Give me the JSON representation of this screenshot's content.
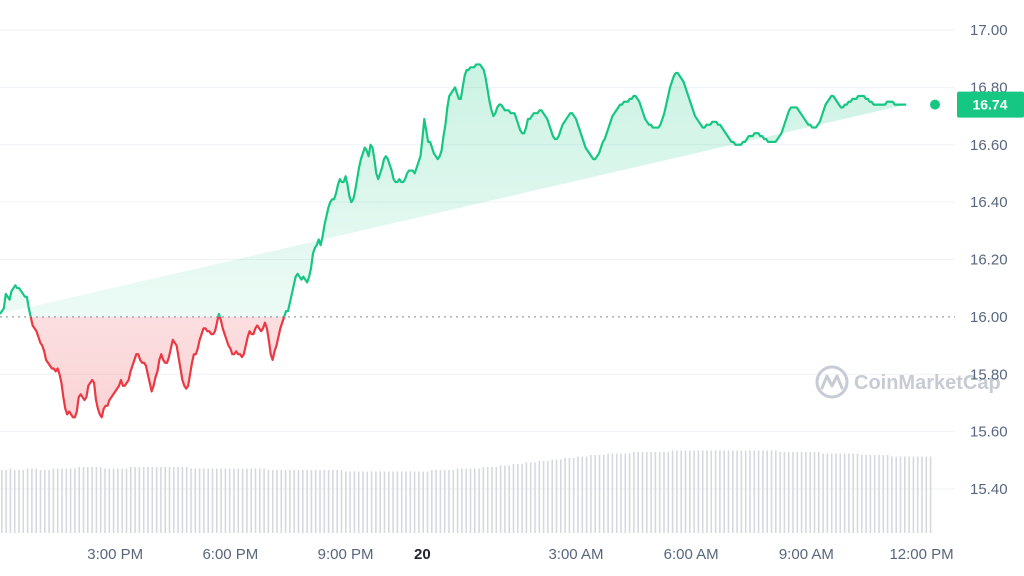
{
  "watermark": {
    "brand": "CoinMarketCap",
    "logo_icon": "coinmarketcap-logo-icon"
  },
  "price_badge": {
    "value": "16.74"
  },
  "colors": {
    "up": "#16c784",
    "down": "#ea3943",
    "baseline": "#9aa0aa",
    "grid": "#eff2f5",
    "volume": "#d5d9df",
    "badge_bg": "#16c784"
  },
  "chart_data": {
    "type": "area",
    "baseline": 16.0,
    "ylim": [
      15.3,
      17.05
    ],
    "yticks": [
      "17.00",
      "16.80",
      "16.60",
      "16.40",
      "16.20",
      "16.00",
      "15.80",
      "15.60",
      "15.40"
    ],
    "ytick_values": [
      17.0,
      16.8,
      16.6,
      16.4,
      16.2,
      16.0,
      15.8,
      15.6,
      15.4
    ],
    "xticks": [
      {
        "label": "3:00 PM",
        "hour": 3.0
      },
      {
        "label": "6:00 PM",
        "hour": 6.0
      },
      {
        "label": "9:00 PM",
        "hour": 9.0
      },
      {
        "label": "20",
        "hour": 11.0,
        "bold": true
      },
      {
        "label": "3:00 AM",
        "hour": 15.0
      },
      {
        "label": "6:00 AM",
        "hour": 18.0
      },
      {
        "label": "9:00 AM",
        "hour": 21.0
      },
      {
        "label": "12:00 PM",
        "hour": 24.0
      }
    ],
    "xlim_hours": [
      0.0,
      24.75
    ],
    "price_series": {
      "hours": [
        0.0,
        0.1,
        0.15,
        0.2,
        0.25,
        0.3,
        0.35,
        0.4,
        0.45,
        0.5,
        0.55,
        0.6,
        0.65,
        0.7,
        0.75,
        0.8,
        0.85,
        0.9,
        0.95,
        1.0,
        1.05,
        1.1,
        1.15,
        1.2,
        1.25,
        1.3,
        1.35,
        1.4,
        1.45,
        1.5,
        1.55,
        1.6,
        1.65,
        1.7,
        1.75,
        1.8,
        1.85,
        1.9,
        1.95,
        2.0,
        2.05,
        2.1,
        2.15,
        2.2,
        2.25,
        2.3,
        2.35,
        2.4,
        2.45,
        2.5,
        2.55,
        2.6,
        2.65,
        2.7,
        2.75,
        2.8,
        2.85,
        2.9,
        2.95,
        3.0,
        3.05,
        3.1,
        3.15,
        3.2,
        3.25,
        3.3,
        3.35,
        3.4,
        3.45,
        3.5,
        3.55,
        3.6,
        3.65,
        3.7,
        3.75,
        3.8,
        3.85,
        3.9,
        3.95,
        4.0,
        4.05,
        4.1,
        4.15,
        4.2,
        4.25,
        4.3,
        4.35,
        4.4,
        4.45,
        4.5,
        4.55,
        4.6,
        4.65,
        4.7,
        4.75,
        4.8,
        4.85,
        4.9,
        4.95,
        5.0,
        5.05,
        5.1,
        5.15,
        5.2,
        5.25,
        5.3,
        5.35,
        5.4,
        5.45,
        5.5,
        5.55,
        5.6,
        5.65,
        5.7,
        5.75,
        5.8,
        5.85,
        5.9,
        5.95,
        6.0,
        6.05,
        6.1,
        6.15,
        6.2,
        6.25,
        6.3,
        6.35,
        6.4,
        6.45,
        6.5,
        6.55,
        6.6,
        6.65,
        6.7,
        6.75,
        6.8,
        6.85,
        6.9,
        6.95,
        7.0,
        7.05,
        7.1,
        7.15,
        7.2,
        7.25,
        7.3,
        7.35,
        7.4,
        7.45,
        7.5,
        7.55,
        7.6,
        7.65,
        7.7,
        7.75,
        7.8,
        7.85,
        7.9,
        7.95,
        8.0,
        8.05,
        8.1,
        8.15,
        8.2,
        8.25,
        8.3,
        8.35,
        8.4,
        8.45,
        8.5,
        8.55,
        8.6,
        8.65,
        8.7,
        8.75,
        8.8,
        8.85,
        8.9,
        8.95,
        9.0,
        9.05,
        9.1,
        9.15,
        9.2,
        9.25,
        9.3,
        9.35,
        9.4,
        9.45,
        9.5,
        9.55,
        9.6,
        9.65,
        9.7,
        9.75,
        9.8,
        9.85,
        9.9,
        9.95,
        10.0,
        10.05,
        10.1,
        10.15,
        10.2,
        10.25,
        10.3,
        10.35,
        10.4,
        10.45,
        10.5,
        10.55,
        10.6,
        10.65,
        10.7,
        10.75,
        10.8,
        10.85,
        10.9,
        10.95,
        11.0,
        11.05,
        11.1,
        11.15,
        11.2,
        11.25,
        11.3,
        11.35,
        11.4,
        11.45,
        11.5,
        11.55,
        11.6,
        11.65,
        11.7,
        11.75,
        11.8,
        11.85,
        11.9,
        11.95,
        12.0,
        12.05,
        12.1,
        12.15,
        12.2,
        12.25,
        12.3,
        12.35,
        12.4,
        12.45,
        12.5,
        12.55,
        12.6,
        12.65,
        12.7,
        12.75,
        12.8,
        12.85,
        12.9,
        12.95,
        13.0,
        13.05,
        13.1,
        13.15,
        13.2,
        13.25,
        13.3,
        13.35,
        13.4,
        13.45,
        13.5,
        13.55,
        13.6,
        13.65,
        13.7,
        13.75,
        13.8,
        13.85,
        13.9,
        13.95,
        14.0,
        14.05,
        14.1,
        14.15,
        14.2,
        14.25,
        14.3,
        14.35,
        14.4,
        14.45,
        14.5,
        14.55,
        14.6,
        14.65,
        14.7,
        14.75,
        14.8,
        14.85,
        14.9,
        14.95,
        15.0,
        15.05,
        15.1,
        15.15,
        15.2,
        15.25,
        15.3,
        15.35,
        15.4,
        15.45,
        15.5,
        15.55,
        15.6,
        15.65,
        15.7,
        15.75,
        15.8,
        15.85,
        15.9,
        15.95,
        16.0,
        16.05,
        16.1,
        16.15,
        16.2,
        16.25,
        16.3,
        16.35,
        16.4,
        16.45,
        16.5,
        16.55,
        16.6,
        16.65,
        16.7,
        16.75,
        16.8,
        16.85,
        16.9,
        16.95,
        17.0,
        17.05,
        17.1,
        17.15,
        17.2,
        17.25,
        17.3,
        17.35,
        17.4,
        17.45,
        17.5,
        17.55,
        17.6,
        17.65,
        17.7,
        17.75,
        17.8,
        17.85,
        17.9,
        17.95,
        18.0,
        18.05,
        18.1,
        18.15,
        18.2,
        18.25,
        18.3,
        18.35,
        18.4,
        18.45,
        18.5,
        18.55,
        18.6,
        18.65,
        18.7,
        18.75,
        18.8,
        18.85,
        18.9,
        18.95,
        19.0,
        19.05,
        19.1,
        19.15,
        19.2,
        19.25,
        19.3,
        19.35,
        19.4,
        19.45,
        19.5,
        19.55,
        19.6,
        19.65,
        19.7,
        19.75,
        19.8,
        19.85,
        19.9,
        19.95,
        20.0,
        20.05,
        20.1,
        20.15,
        20.2,
        20.25,
        20.3,
        20.35,
        20.4,
        20.45,
        20.5,
        20.55,
        20.6,
        20.65,
        20.7,
        20.75,
        20.8,
        20.85,
        20.9,
        20.95,
        21.0,
        21.05,
        21.1,
        21.15,
        21.2,
        21.25,
        21.3,
        21.35,
        21.4,
        21.45,
        21.5,
        21.55,
        21.6,
        21.65,
        21.7,
        21.75,
        21.8,
        21.85,
        21.9,
        21.95,
        22.0,
        22.05,
        22.1,
        22.15,
        22.2,
        22.25,
        22.3,
        22.35,
        22.4,
        22.45,
        22.5,
        22.55,
        22.6,
        22.65,
        22.7,
        22.75,
        22.8,
        22.85,
        22.9,
        22.95,
        23.0,
        23.05,
        23.1,
        23.15,
        23.2,
        23.25,
        23.3,
        23.35,
        23.4,
        23.45,
        23.5,
        23.55,
        23.6,
        23.65,
        23.7,
        23.75,
        23.8,
        23.85,
        23.9,
        23.95,
        24.0,
        24.05,
        24.1,
        24.15,
        24.2,
        24.25,
        24.3,
        24.35
      ],
      "prices": [
        16.01,
        16.03,
        16.08,
        16.07,
        16.06,
        16.09,
        16.1,
        16.11,
        16.1,
        16.1,
        16.09,
        16.08,
        16.07,
        16.07,
        16.03,
        16.0,
        15.97,
        15.96,
        15.95,
        15.93,
        15.91,
        15.9,
        15.88,
        15.85,
        15.84,
        15.83,
        15.82,
        15.82,
        15.81,
        15.82,
        15.8,
        15.77,
        15.72,
        15.68,
        15.66,
        15.67,
        15.66,
        15.65,
        15.65,
        15.67,
        15.72,
        15.73,
        15.72,
        15.71,
        15.72,
        15.76,
        15.77,
        15.78,
        15.77,
        15.71,
        15.68,
        15.66,
        15.65,
        15.68,
        15.69,
        15.69,
        15.71,
        15.72,
        15.73,
        15.74,
        15.75,
        15.76,
        15.78,
        15.76,
        15.76,
        15.77,
        15.78,
        15.81,
        15.83,
        15.85,
        15.87,
        15.87,
        15.85,
        15.84,
        15.84,
        15.83,
        15.8,
        15.77,
        15.74,
        15.76,
        15.79,
        15.81,
        15.85,
        15.87,
        15.85,
        15.84,
        15.84,
        15.86,
        15.89,
        15.92,
        15.91,
        15.9,
        15.86,
        15.82,
        15.78,
        15.76,
        15.75,
        15.76,
        15.8,
        15.84,
        15.87,
        15.87,
        15.89,
        15.92,
        15.94,
        15.96,
        15.96,
        15.95,
        15.95,
        15.94,
        15.94,
        15.95,
        15.98,
        16.01,
        15.99,
        15.96,
        15.94,
        15.92,
        15.9,
        15.89,
        15.87,
        15.87,
        15.88,
        15.87,
        15.87,
        15.86,
        15.87,
        15.9,
        15.93,
        15.95,
        15.94,
        15.94,
        15.96,
        15.97,
        15.96,
        15.95,
        15.96,
        15.98,
        15.96,
        15.92,
        15.87,
        15.85,
        15.88,
        15.9,
        15.93,
        15.96,
        15.98,
        16.0,
        16.02,
        16.02,
        16.05,
        16.08,
        16.11,
        16.14,
        16.15,
        16.14,
        16.13,
        16.14,
        16.13,
        16.12,
        16.14,
        16.17,
        16.22,
        16.24,
        16.25,
        16.27,
        16.25,
        16.28,
        16.32,
        16.35,
        16.38,
        16.4,
        16.41,
        16.41,
        16.43,
        16.46,
        16.48,
        16.47,
        16.47,
        16.49,
        16.46,
        16.42,
        16.4,
        16.41,
        16.44,
        16.48,
        16.52,
        16.55,
        16.57,
        16.59,
        16.58,
        16.56,
        16.6,
        16.59,
        16.55,
        16.5,
        16.48,
        16.5,
        16.52,
        16.55,
        16.56,
        16.55,
        16.53,
        16.51,
        16.48,
        16.47,
        16.47,
        16.48,
        16.47,
        16.47,
        16.48,
        16.5,
        16.51,
        16.51,
        16.51,
        16.5,
        16.52,
        16.54,
        16.56,
        16.62,
        16.69,
        16.65,
        16.61,
        16.61,
        16.59,
        16.57,
        16.56,
        16.55,
        16.56,
        16.58,
        16.63,
        16.67,
        16.73,
        16.77,
        16.78,
        16.79,
        16.8,
        16.78,
        16.76,
        16.76,
        16.8,
        16.84,
        16.86,
        16.86,
        16.87,
        16.87,
        16.87,
        16.88,
        16.88,
        16.88,
        16.87,
        16.86,
        16.83,
        16.79,
        16.75,
        16.72,
        16.7,
        16.71,
        16.73,
        16.74,
        16.74,
        16.73,
        16.72,
        16.72,
        16.72,
        16.71,
        16.71,
        16.71,
        16.69,
        16.67,
        16.65,
        16.64,
        16.64,
        16.66,
        16.69,
        16.69,
        16.7,
        16.71,
        16.71,
        16.71,
        16.72,
        16.72,
        16.71,
        16.7,
        16.69,
        16.67,
        16.65,
        16.63,
        16.62,
        16.62,
        16.63,
        16.65,
        16.67,
        16.68,
        16.69,
        16.7,
        16.71,
        16.71,
        16.7,
        16.69,
        16.67,
        16.65,
        16.63,
        16.61,
        16.59,
        16.58,
        16.57,
        16.56,
        16.55,
        16.55,
        16.56,
        16.57,
        16.59,
        16.61,
        16.62,
        16.64,
        16.66,
        16.68,
        16.7,
        16.71,
        16.72,
        16.73,
        16.74,
        16.74,
        16.75,
        16.75,
        16.75,
        16.76,
        16.76,
        16.77,
        16.77,
        16.76,
        16.75,
        16.73,
        16.71,
        16.69,
        16.68,
        16.67,
        16.67,
        16.66,
        16.66,
        16.66,
        16.66,
        16.67,
        16.69,
        16.71,
        16.74,
        16.77,
        16.8,
        16.82,
        16.84,
        16.85,
        16.85,
        16.84,
        16.83,
        16.82,
        16.8,
        16.78,
        16.76,
        16.74,
        16.72,
        16.7,
        16.69,
        16.68,
        16.67,
        16.66,
        16.66,
        16.67,
        16.67,
        16.67,
        16.68,
        16.68,
        16.68,
        16.67,
        16.67,
        16.66,
        16.65,
        16.64,
        16.63,
        16.62,
        16.61,
        16.61,
        16.6,
        16.6,
        16.6,
        16.6,
        16.61,
        16.61,
        16.62,
        16.63,
        16.63,
        16.63,
        16.64,
        16.64,
        16.64,
        16.63,
        16.63,
        16.62,
        16.62,
        16.61,
        16.61,
        16.61,
        16.61,
        16.61,
        16.62,
        16.63,
        16.64,
        16.66,
        16.68,
        16.7,
        16.72,
        16.73,
        16.73,
        16.73,
        16.73,
        16.72,
        16.71,
        16.7,
        16.69,
        16.68,
        16.67,
        16.67,
        16.66,
        16.66,
        16.66,
        16.67,
        16.68,
        16.7,
        16.72,
        16.74,
        16.75,
        16.76,
        16.77,
        16.77,
        16.76,
        16.75,
        16.74,
        16.73,
        16.73,
        16.74,
        16.74,
        16.75,
        16.75,
        16.76,
        16.76,
        16.76,
        16.77,
        16.77,
        16.77,
        16.77,
        16.76,
        16.76,
        16.75,
        16.75,
        16.74,
        16.74,
        16.74,
        16.74,
        16.74,
        16.74,
        16.74,
        16.75,
        16.75,
        16.75,
        16.75,
        16.74,
        16.74,
        16.74,
        16.74,
        16.74,
        16.74,
        16.74
      ],
      "last": 16.74
    },
    "volume_series": {
      "description_units": "relative",
      "values": [
        0.42,
        0.43,
        0.42,
        0.42,
        0.43,
        0.43,
        0.42,
        0.42,
        0.43,
        0.43,
        0.43,
        0.43,
        0.44,
        0.44,
        0.44,
        0.44,
        0.43,
        0.43,
        0.43,
        0.43,
        0.44,
        0.44,
        0.44,
        0.44,
        0.44,
        0.44,
        0.44,
        0.44,
        0.44,
        0.44,
        0.43,
        0.43,
        0.43,
        0.43,
        0.43,
        0.43,
        0.43,
        0.43,
        0.43,
        0.43,
        0.43,
        0.43,
        0.42,
        0.42,
        0.42,
        0.42,
        0.42,
        0.42,
        0.42,
        0.42,
        0.42,
        0.42,
        0.42,
        0.42,
        0.41,
        0.41,
        0.41,
        0.41,
        0.41,
        0.41,
        0.41,
        0.41,
        0.41,
        0.41,
        0.41,
        0.41,
        0.41,
        0.41,
        0.42,
        0.42,
        0.42,
        0.42,
        0.43,
        0.43,
        0.43,
        0.43,
        0.44,
        0.44,
        0.44,
        0.45,
        0.45,
        0.46,
        0.46,
        0.47,
        0.47,
        0.48,
        0.48,
        0.49,
        0.49,
        0.5,
        0.5,
        0.51,
        0.51,
        0.52,
        0.52,
        0.52,
        0.53,
        0.53,
        0.53,
        0.53,
        0.54,
        0.54,
        0.54,
        0.54,
        0.54,
        0.54,
        0.55,
        0.55,
        0.55,
        0.55,
        0.55,
        0.55,
        0.55,
        0.55,
        0.55,
        0.55,
        0.55,
        0.55,
        0.55,
        0.55,
        0.55,
        0.55,
        0.55,
        0.54,
        0.54,
        0.54,
        0.54,
        0.54,
        0.54,
        0.54,
        0.53,
        0.53,
        0.53,
        0.53,
        0.53,
        0.53,
        0.52,
        0.52,
        0.52,
        0.52,
        0.52,
        0.51,
        0.51,
        0.51,
        0.51,
        0.51,
        0.51,
        0.51
      ]
    }
  }
}
